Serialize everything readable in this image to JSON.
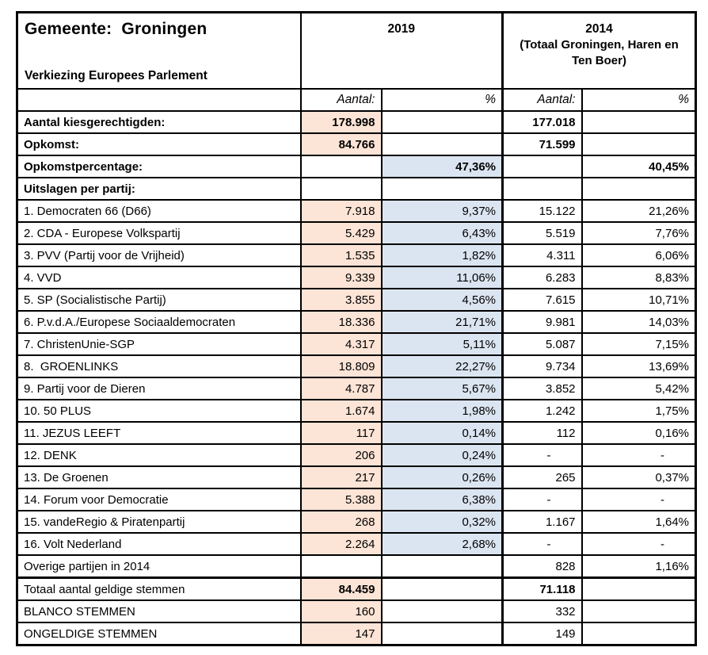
{
  "table": {
    "title": "Gemeente:  Groningen",
    "subtitle": "Verkiezing Europees Parlement",
    "year2019": "2019",
    "year2014": "2014",
    "year2014_note": "(Totaal Groningen, Haren en Ten Boer)",
    "sub_aantal": "Aantal:",
    "sub_pct": "%",
    "colors": {
      "aantal_fill": "#fce4d6",
      "pct_fill": "#dbe5f1",
      "border": "#000000"
    },
    "rows": [
      {
        "label": "Aantal kiesgerechtigden:",
        "bold": true,
        "c": [
          {
            "v": "178.998",
            "f": "o",
            "b": true
          },
          {
            "v": ""
          },
          {
            "v": "177.018",
            "b": true
          },
          {
            "v": ""
          }
        ]
      },
      {
        "label": "Opkomst:",
        "bold": true,
        "c": [
          {
            "v": "84.766",
            "f": "o",
            "b": true
          },
          {
            "v": ""
          },
          {
            "v": "71.599",
            "b": true
          },
          {
            "v": ""
          }
        ]
      },
      {
        "label": "Opkomstpercentage:",
        "bold": true,
        "c": [
          {
            "v": ""
          },
          {
            "v": "47,36%",
            "f": "b",
            "b": true
          },
          {
            "v": ""
          },
          {
            "v": "40,45%",
            "b": true
          }
        ]
      },
      {
        "label": "Uitslagen per partij:",
        "bold": true,
        "c": [
          {
            "v": ""
          },
          {
            "v": ""
          },
          {
            "v": ""
          },
          {
            "v": ""
          }
        ]
      },
      {
        "label": "1. Democraten 66 (D66)",
        "c": [
          {
            "v": "7.918",
            "f": "o"
          },
          {
            "v": "9,37%",
            "f": "b"
          },
          {
            "v": "15.122"
          },
          {
            "v": "21,26%"
          }
        ]
      },
      {
        "label": "2. CDA - Europese Volkspartij",
        "c": [
          {
            "v": "5.429",
            "f": "o"
          },
          {
            "v": "6,43%",
            "f": "b"
          },
          {
            "v": "5.519"
          },
          {
            "v": "7,76%"
          }
        ]
      },
      {
        "label": "3. PVV (Partij voor de Vrijheid)",
        "c": [
          {
            "v": "1.535",
            "f": "o"
          },
          {
            "v": "1,82%",
            "f": "b"
          },
          {
            "v": "4.311"
          },
          {
            "v": "6,06%"
          }
        ]
      },
      {
        "label": "4. VVD",
        "c": [
          {
            "v": "9.339",
            "f": "o"
          },
          {
            "v": "11,06%",
            "f": "b"
          },
          {
            "v": "6.283"
          },
          {
            "v": "8,83%"
          }
        ]
      },
      {
        "label": "5. SP (Socialistische Partij)",
        "c": [
          {
            "v": "3.855",
            "f": "o"
          },
          {
            "v": "4,56%",
            "f": "b"
          },
          {
            "v": "7.615"
          },
          {
            "v": "10,71%"
          }
        ]
      },
      {
        "label": "6. P.v.d.A./Europese Sociaaldemocraten",
        "c": [
          {
            "v": "18.336",
            "f": "o"
          },
          {
            "v": "21,71%",
            "f": "b"
          },
          {
            "v": "9.981"
          },
          {
            "v": "14,03%"
          }
        ]
      },
      {
        "label": "7. ChristenUnie-SGP",
        "c": [
          {
            "v": "4.317",
            "f": "o"
          },
          {
            "v": "5,11%",
            "f": "b"
          },
          {
            "v": "5.087"
          },
          {
            "v": "7,15%"
          }
        ]
      },
      {
        "label": "8.  GROENLINKS",
        "c": [
          {
            "v": "18.809",
            "f": "o"
          },
          {
            "v": "22,27%",
            "f": "b"
          },
          {
            "v": "9.734"
          },
          {
            "v": "13,69%"
          }
        ]
      },
      {
        "label": "9. Partij voor de Dieren",
        "c": [
          {
            "v": "4.787",
            "f": "o"
          },
          {
            "v": "5,67%",
            "f": "b"
          },
          {
            "v": "3.852"
          },
          {
            "v": "5,42%"
          }
        ]
      },
      {
        "label": "10. 50 PLUS",
        "c": [
          {
            "v": "1.674",
            "f": "o"
          },
          {
            "v": "1,98%",
            "f": "b"
          },
          {
            "v": "1.242"
          },
          {
            "v": "1,75%"
          }
        ]
      },
      {
        "label": "11. JEZUS LEEFT",
        "c": [
          {
            "v": "117",
            "f": "o"
          },
          {
            "v": "0,14%",
            "f": "b"
          },
          {
            "v": "112"
          },
          {
            "v": "0,16%"
          }
        ]
      },
      {
        "label": "12. DENK",
        "c": [
          {
            "v": "206",
            "f": "o"
          },
          {
            "v": "0,24%",
            "f": "b"
          },
          {
            "v": "-"
          },
          {
            "v": "-"
          }
        ]
      },
      {
        "label": "13. De Groenen",
        "c": [
          {
            "v": "217",
            "f": "o"
          },
          {
            "v": "0,26%",
            "f": "b"
          },
          {
            "v": "265"
          },
          {
            "v": "0,37%"
          }
        ]
      },
      {
        "label": "14. Forum voor Democratie",
        "c": [
          {
            "v": "5.388",
            "f": "o"
          },
          {
            "v": "6,38%",
            "f": "b"
          },
          {
            "v": "-"
          },
          {
            "v": "-"
          }
        ]
      },
      {
        "label": "15. vandeRegio & Piratenpartij",
        "c": [
          {
            "v": "268",
            "f": "o"
          },
          {
            "v": "0,32%",
            "f": "b"
          },
          {
            "v": "1.167"
          },
          {
            "v": "1,64%"
          }
        ]
      },
      {
        "label": "16. Volt Nederland",
        "c": [
          {
            "v": "2.264",
            "f": "o"
          },
          {
            "v": "2,68%",
            "f": "b"
          },
          {
            "v": "-"
          },
          {
            "v": "-"
          }
        ]
      },
      {
        "label": "Overige partijen in 2014",
        "c": [
          {
            "v": ""
          },
          {
            "v": ""
          },
          {
            "v": "828"
          },
          {
            "v": "1,16%"
          }
        ]
      },
      {
        "label": "Totaal aantal geldige stemmen",
        "sep": true,
        "c": [
          {
            "v": "84.459",
            "f": "o",
            "b": true
          },
          {
            "v": ""
          },
          {
            "v": "71.118",
            "b": true
          },
          {
            "v": ""
          }
        ]
      },
      {
        "label": "BLANCO STEMMEN",
        "c": [
          {
            "v": "160",
            "f": "o"
          },
          {
            "v": ""
          },
          {
            "v": "332"
          },
          {
            "v": ""
          }
        ]
      },
      {
        "label": "ONGELDIGE STEMMEN",
        "c": [
          {
            "v": "147",
            "f": "o"
          },
          {
            "v": ""
          },
          {
            "v": "149"
          },
          {
            "v": ""
          }
        ]
      }
    ]
  }
}
